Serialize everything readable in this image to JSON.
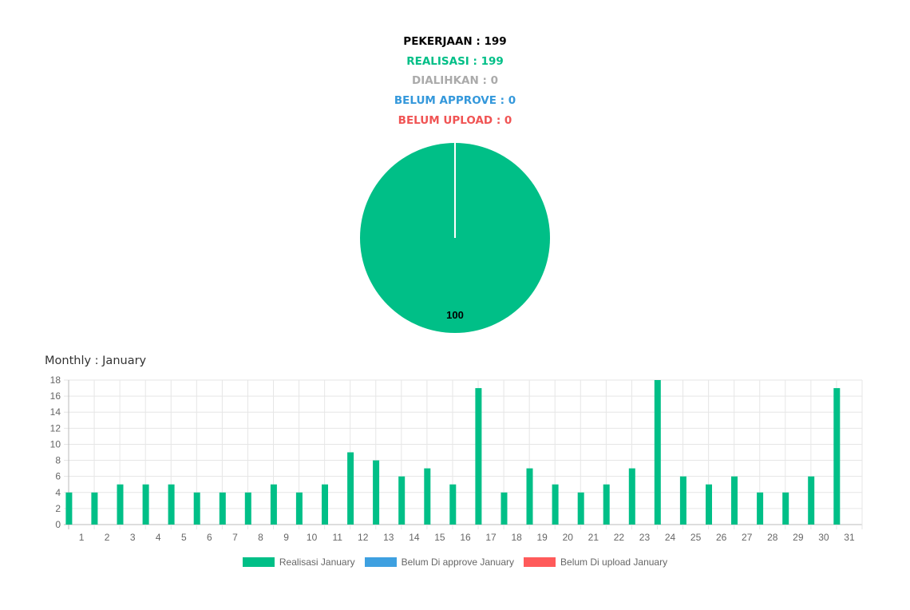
{
  "summary": {
    "pekerjaan": "PEKERJAAN : 199",
    "realisasi": "REALISASI : 199",
    "dialihkan": "DIALIHKAN : 0",
    "belum_approve": "BELUM APPROVE : 0",
    "belum_upload": "BELUM UPLOAD : 0"
  },
  "colors": {
    "pekerjaan": "#000000",
    "realisasi": "#00bf87",
    "dialihkan": "#aaaaaa",
    "belum_approve": "#3498db",
    "belum_upload": "#f05454",
    "legend_approve": "#3ea0e0",
    "legend_upload": "#ff5a5a"
  },
  "monthly_title": "Monthly : January",
  "chart_data": [
    {
      "type": "pie",
      "slices": [
        {
          "value": 100,
          "label": "100",
          "color": "#00bf87"
        }
      ]
    },
    {
      "type": "bar",
      "categories": [
        "1",
        "2",
        "3",
        "4",
        "5",
        "6",
        "7",
        "8",
        "9",
        "10",
        "11",
        "12",
        "13",
        "14",
        "15",
        "16",
        "17",
        "18",
        "19",
        "20",
        "21",
        "22",
        "23",
        "24",
        "25",
        "26",
        "27",
        "28",
        "29",
        "30",
        "31"
      ],
      "series": [
        {
          "name": "Realisasi January",
          "color": "#00bf87",
          "values": [
            4,
            4,
            5,
            5,
            5,
            4,
            4,
            4,
            5,
            4,
            5,
            9,
            8,
            6,
            7,
            5,
            17,
            4,
            7,
            5,
            4,
            5,
            7,
            18,
            6,
            5,
            6,
            4,
            4,
            6,
            17
          ]
        },
        {
          "name": "Belum Di approve January",
          "color": "#3ea0e0",
          "values": [
            0,
            0,
            0,
            0,
            0,
            0,
            0,
            0,
            0,
            0,
            0,
            0,
            0,
            0,
            0,
            0,
            0,
            0,
            0,
            0,
            0,
            0,
            0,
            0,
            0,
            0,
            0,
            0,
            0,
            0,
            0
          ]
        },
        {
          "name": "Belum Di upload January",
          "color": "#ff5a5a",
          "values": [
            0,
            0,
            0,
            0,
            0,
            0,
            0,
            0,
            0,
            0,
            0,
            0,
            0,
            0,
            0,
            0,
            0,
            0,
            0,
            0,
            0,
            0,
            0,
            0,
            0,
            0,
            0,
            0,
            0,
            0,
            0
          ]
        }
      ],
      "ylim": [
        0,
        18
      ],
      "yticks": [
        "0",
        "2",
        "4",
        "6",
        "8",
        "10",
        "12",
        "14",
        "16",
        "18"
      ],
      "grid": true,
      "legend": "bottom"
    }
  ]
}
